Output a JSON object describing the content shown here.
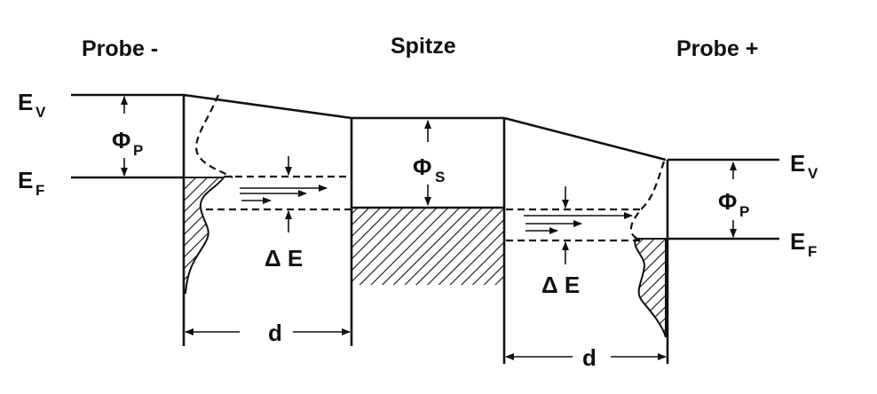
{
  "titles": {
    "left": "Probe -",
    "center": "Spitze",
    "right": "Probe +"
  },
  "labels": {
    "ev_main": "E",
    "ev_sub": "V",
    "ef_main": "E",
    "ef_sub": "F",
    "phi_main": "Φ",
    "phi_p_sub": "P",
    "phi_s_sub": "S",
    "delta_e": "Δ E",
    "d": "d"
  }
}
